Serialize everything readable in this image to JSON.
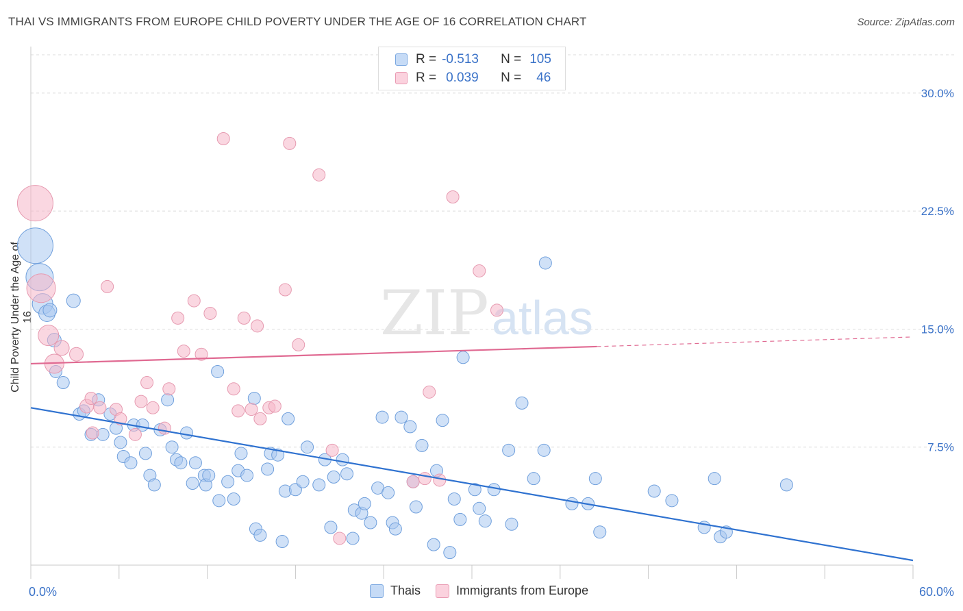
{
  "title": "THAI VS IMMIGRANTS FROM EUROPE CHILD POVERTY UNDER THE AGE OF 16 CORRELATION CHART",
  "source": "Source: ZipAtlas.com",
  "watermark": {
    "zip": "ZIP",
    "atlas": "atlas"
  },
  "stats": {
    "r_label": "R =",
    "n_label": "N =",
    "rows": [
      {
        "r": "-0.513",
        "n": "105",
        "color": "#a9c8f0"
      },
      {
        "r": "0.039",
        "n": "46",
        "color": "#f5b7c8"
      }
    ]
  },
  "legend": [
    {
      "name": "Thais",
      "color": "#a9c8f0"
    },
    {
      "name": "Immigrants from Europe",
      "color": "#f5b7c8"
    }
  ],
  "chart_data": {
    "type": "scatter",
    "xlabel": "",
    "ylabel": "Child Poverty Under the Age of 16",
    "xlim": [
      0,
      60
    ],
    "ylim": [
      0,
      30
    ],
    "x_tick_labels": [
      "0.0%",
      "60.0%"
    ],
    "y_ticks": [
      7.5,
      15.0,
      22.5,
      30.0
    ],
    "y_tick_labels": [
      "7.5%",
      "15.0%",
      "22.5%",
      "30.0%"
    ],
    "grid": true,
    "series": [
      {
        "name": "Thais",
        "color": "#a9c8f0",
        "stroke": "#6f9fdc",
        "trend": {
          "x0": 0,
          "y0": 10.0,
          "x1": 60,
          "y1": 0.3,
          "color": "#2f72d0"
        },
        "points": [
          [
            0.3,
            20.3,
            2.6
          ],
          [
            0.6,
            18.3,
            2.0
          ],
          [
            0.8,
            16.6,
            1.5
          ],
          [
            1.1,
            16.0,
            1.2
          ],
          [
            1.3,
            16.2,
            1.0
          ],
          [
            1.6,
            14.3,
            1.0
          ],
          [
            1.7,
            12.3,
            0.9
          ],
          [
            2.2,
            11.6,
            0.9
          ],
          [
            2.9,
            16.8,
            1.0
          ],
          [
            3.3,
            9.6,
            0.9
          ],
          [
            3.6,
            9.8,
            0.9
          ],
          [
            4.1,
            8.3,
            0.9
          ],
          [
            4.6,
            10.5,
            0.9
          ],
          [
            4.9,
            8.3,
            0.9
          ],
          [
            5.4,
            9.6,
            0.9
          ],
          [
            5.8,
            8.7,
            0.9
          ],
          [
            6.1,
            7.8,
            0.9
          ],
          [
            6.3,
            6.9,
            0.9
          ],
          [
            6.8,
            6.5,
            0.9
          ],
          [
            7.0,
            8.9,
            0.9
          ],
          [
            7.6,
            8.9,
            0.9
          ],
          [
            7.8,
            7.1,
            0.9
          ],
          [
            8.1,
            5.7,
            0.9
          ],
          [
            8.4,
            5.1,
            0.9
          ],
          [
            8.8,
            8.6,
            0.9
          ],
          [
            9.3,
            10.5,
            0.9
          ],
          [
            9.6,
            7.5,
            0.9
          ],
          [
            9.9,
            6.7,
            0.9
          ],
          [
            10.2,
            6.5,
            0.9
          ],
          [
            10.6,
            8.4,
            0.9
          ],
          [
            11.0,
            5.2,
            0.9
          ],
          [
            11.2,
            6.5,
            0.9
          ],
          [
            11.8,
            5.7,
            0.9
          ],
          [
            11.9,
            5.1,
            0.9
          ],
          [
            12.1,
            5.7,
            0.9
          ],
          [
            12.7,
            12.3,
            0.9
          ],
          [
            12.8,
            4.1,
            0.9
          ],
          [
            13.4,
            5.3,
            0.9
          ],
          [
            13.8,
            4.2,
            0.9
          ],
          [
            14.1,
            6.0,
            0.9
          ],
          [
            14.3,
            7.1,
            0.9
          ],
          [
            14.7,
            5.7,
            0.9
          ],
          [
            15.2,
            10.6,
            0.9
          ],
          [
            15.3,
            2.3,
            0.9
          ],
          [
            15.6,
            1.9,
            0.9
          ],
          [
            16.1,
            6.1,
            0.9
          ],
          [
            16.3,
            7.1,
            0.9
          ],
          [
            16.8,
            7.0,
            0.9
          ],
          [
            17.1,
            1.5,
            0.9
          ],
          [
            17.3,
            4.7,
            0.9
          ],
          [
            17.5,
            9.3,
            0.9
          ],
          [
            18.0,
            4.8,
            0.9
          ],
          [
            18.5,
            5.3,
            0.9
          ],
          [
            18.8,
            7.5,
            0.9
          ],
          [
            19.6,
            5.1,
            0.9
          ],
          [
            20.0,
            6.7,
            0.9
          ],
          [
            20.4,
            2.4,
            0.9
          ],
          [
            20.6,
            5.6,
            0.9
          ],
          [
            21.2,
            6.7,
            0.9
          ],
          [
            21.5,
            5.8,
            0.9
          ],
          [
            21.9,
            1.7,
            0.9
          ],
          [
            22.0,
            3.5,
            0.9
          ],
          [
            22.5,
            3.3,
            0.9
          ],
          [
            22.7,
            3.9,
            0.9
          ],
          [
            23.1,
            2.7,
            0.9
          ],
          [
            23.6,
            4.9,
            0.9
          ],
          [
            23.9,
            9.4,
            0.9
          ],
          [
            24.3,
            4.6,
            0.9
          ],
          [
            24.6,
            2.7,
            0.9
          ],
          [
            24.8,
            2.3,
            0.9
          ],
          [
            25.2,
            9.4,
            0.9
          ],
          [
            25.8,
            8.8,
            0.9
          ],
          [
            26.0,
            5.3,
            0.9
          ],
          [
            26.2,
            3.7,
            0.9
          ],
          [
            26.6,
            7.6,
            0.9
          ],
          [
            27.4,
            1.3,
            0.9
          ],
          [
            27.6,
            6.0,
            0.9
          ],
          [
            28.0,
            9.2,
            0.9
          ],
          [
            28.5,
            0.8,
            0.9
          ],
          [
            28.8,
            4.2,
            0.9
          ],
          [
            29.2,
            2.9,
            0.9
          ],
          [
            29.4,
            13.2,
            0.9
          ],
          [
            30.2,
            4.8,
            0.9
          ],
          [
            30.5,
            3.6,
            0.9
          ],
          [
            30.9,
            2.8,
            0.9
          ],
          [
            31.5,
            4.8,
            0.9
          ],
          [
            32.5,
            7.3,
            0.9
          ],
          [
            32.7,
            2.6,
            0.9
          ],
          [
            33.4,
            10.3,
            0.9
          ],
          [
            34.2,
            5.5,
            0.9
          ],
          [
            34.9,
            7.3,
            0.9
          ],
          [
            35.0,
            19.2,
            0.9
          ],
          [
            36.8,
            3.9,
            0.9
          ],
          [
            37.9,
            3.9,
            0.9
          ],
          [
            38.4,
            5.5,
            0.9
          ],
          [
            38.7,
            2.1,
            0.9
          ],
          [
            42.4,
            4.7,
            0.9
          ],
          [
            43.6,
            4.1,
            0.9
          ],
          [
            45.8,
            2.4,
            0.9
          ],
          [
            46.5,
            5.5,
            0.9
          ],
          [
            46.9,
            1.8,
            0.9
          ],
          [
            47.3,
            2.1,
            0.9
          ],
          [
            51.4,
            5.1,
            0.9
          ]
        ]
      },
      {
        "name": "Immigrants from Europe",
        "color": "#f5b7c8",
        "stroke": "#e69ab0",
        "trend": {
          "x0": 0,
          "y0": 12.8,
          "x1": 60,
          "y1": 14.5,
          "solid_until": 38.5,
          "color": "#e06a92"
        },
        "points": [
          [
            0.3,
            23.0,
            2.6
          ],
          [
            0.7,
            17.6,
            2.1
          ],
          [
            1.2,
            14.6,
            1.5
          ],
          [
            1.6,
            12.8,
            1.4
          ],
          [
            2.1,
            13.8,
            1.1
          ],
          [
            3.1,
            13.4,
            1.0
          ],
          [
            3.8,
            10.1,
            1.0
          ],
          [
            4.1,
            10.6,
            0.9
          ],
          [
            4.2,
            8.4,
            0.9
          ],
          [
            4.7,
            10.0,
            0.9
          ],
          [
            5.2,
            17.7,
            0.9
          ],
          [
            5.8,
            9.9,
            0.9
          ],
          [
            6.1,
            9.3,
            0.9
          ],
          [
            7.1,
            8.3,
            0.9
          ],
          [
            7.5,
            10.4,
            0.9
          ],
          [
            7.9,
            11.6,
            0.9
          ],
          [
            8.3,
            10.0,
            0.9
          ],
          [
            9.1,
            8.7,
            0.9
          ],
          [
            9.4,
            11.2,
            0.9
          ],
          [
            10.0,
            15.7,
            0.9
          ],
          [
            10.4,
            13.6,
            0.9
          ],
          [
            11.1,
            16.8,
            0.9
          ],
          [
            11.6,
            13.4,
            0.9
          ],
          [
            12.2,
            16.0,
            0.9
          ],
          [
            13.1,
            27.1,
            0.9
          ],
          [
            13.8,
            11.2,
            0.9
          ],
          [
            14.1,
            9.8,
            0.9
          ],
          [
            14.5,
            15.7,
            0.9
          ],
          [
            15.0,
            9.9,
            0.9
          ],
          [
            15.4,
            15.2,
            0.9
          ],
          [
            15.6,
            9.3,
            0.9
          ],
          [
            16.2,
            10.0,
            0.9
          ],
          [
            16.6,
            10.1,
            0.9
          ],
          [
            17.3,
            17.5,
            0.9
          ],
          [
            17.6,
            26.8,
            0.9
          ],
          [
            18.2,
            14.0,
            0.9
          ],
          [
            19.6,
            24.8,
            0.9
          ],
          [
            20.5,
            7.3,
            0.9
          ],
          [
            21.0,
            1.7,
            0.9
          ],
          [
            26.0,
            5.3,
            0.9
          ],
          [
            27.1,
            11.0,
            0.9
          ],
          [
            27.8,
            5.4,
            0.9
          ],
          [
            28.7,
            23.4,
            0.9
          ],
          [
            30.5,
            18.7,
            0.9
          ],
          [
            31.7,
            16.2,
            0.9
          ],
          [
            26.8,
            5.5,
            0.9
          ]
        ]
      }
    ]
  }
}
